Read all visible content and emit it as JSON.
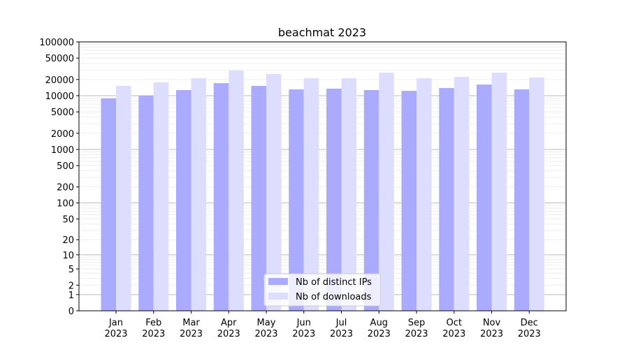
{
  "chart_data": {
    "type": "bar",
    "title": "beachmat 2023",
    "xlabel": "",
    "ylabel": "",
    "yscale": "log(1+y)",
    "ylim": [
      0,
      100000
    ],
    "yticks": [
      0,
      1,
      2,
      5,
      10,
      20,
      50,
      100,
      200,
      500,
      1000,
      2000,
      5000,
      10000,
      20000,
      50000,
      100000
    ],
    "grid": true,
    "legend_position": "bottom-center",
    "categories": [
      "Jan\n2023",
      "Feb\n2023",
      "Mar\n2023",
      "Apr\n2023",
      "May\n2023",
      "Jun\n2023",
      "Jul\n2023",
      "Aug\n2023",
      "Sep\n2023",
      "Oct\n2023",
      "Nov\n2023",
      "Dec\n2023"
    ],
    "series": [
      {
        "name": "Nb of distinct IPs",
        "color": "#aaaaff",
        "values": [
          8900,
          10000,
          12700,
          17100,
          15200,
          13100,
          13500,
          12700,
          12300,
          13900,
          16100,
          13100
        ]
      },
      {
        "name": "Nb of downloads",
        "color": "#ddddff",
        "values": [
          15200,
          17700,
          21100,
          29400,
          25300,
          21100,
          21100,
          26800,
          21100,
          22400,
          26800,
          21800
        ]
      }
    ]
  }
}
